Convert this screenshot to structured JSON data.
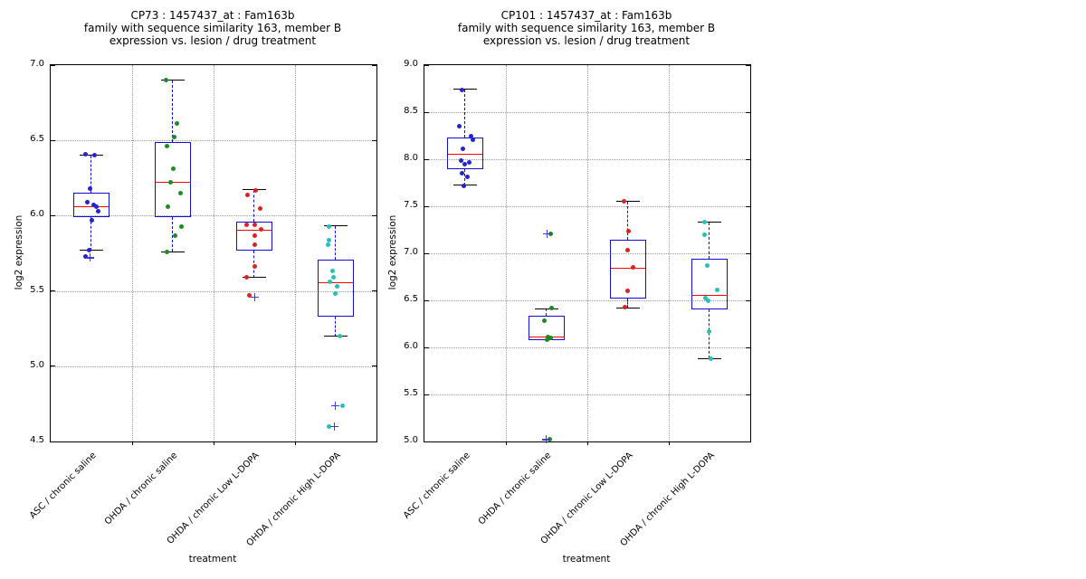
{
  "figure": {
    "background": "#ffffff",
    "text_color": "#000000",
    "colors": {
      "axis": "#000000",
      "grid": "#999999",
      "box": "#0d0dd6",
      "whisker": "#0d0dd6",
      "median": "#ff0000",
      "cap": "#000000",
      "flier": "#3c3cdc"
    }
  },
  "chart_data": [
    {
      "type": "boxplot",
      "title_lines": [
        "CP73 : 1457437_at : Fam163b",
        "family with sequence similarity 163, member B",
        "expression vs. lesion / drug treatment"
      ],
      "xlabel": "treatment",
      "ylabel": "log2 expression",
      "ylim": [
        4.5,
        7.0
      ],
      "yticks": [
        "4.5",
        "5.0",
        "5.5",
        "6.0",
        "6.5",
        "7.0"
      ],
      "grid": "dotted",
      "legend": "none",
      "categories": [
        "ASC / chronic saline",
        "OHDA / chronic saline",
        "OHDA / chronic Low L-DOPA",
        "OHDA / chronic High L-DOPA"
      ],
      "groups": [
        {
          "category": "ASC / chronic saline",
          "point_color": "#2525cd",
          "box": {
            "whisker_low": 5.77,
            "q1": 5.99,
            "median": 6.06,
            "q3": 6.15,
            "whisker_high": 6.4
          },
          "points": [
            [
              6.41,
              -7
            ],
            [
              6.4,
              3
            ],
            [
              6.18,
              -2
            ],
            [
              6.09,
              -5
            ],
            [
              6.07,
              2
            ],
            [
              6.06,
              5
            ],
            [
              6.03,
              7
            ],
            [
              5.97,
              0
            ],
            [
              5.77,
              -3
            ],
            [
              5.73,
              -7
            ]
          ],
          "fliers": [
            [
              5.72,
              -2
            ]
          ]
        },
        {
          "category": "OHDA / chronic saline",
          "point_color": "#1e8b1e",
          "box": {
            "whisker_low": 5.76,
            "q1": 5.99,
            "median": 6.22,
            "q3": 6.49,
            "whisker_high": 6.9
          },
          "points": [
            [
              6.9,
              -8
            ],
            [
              6.61,
              4
            ],
            [
              6.52,
              1
            ],
            [
              6.46,
              -7
            ],
            [
              6.31,
              0
            ],
            [
              6.22,
              -3
            ],
            [
              6.15,
              8
            ],
            [
              6.06,
              -6
            ],
            [
              5.93,
              9
            ],
            [
              5.87,
              2
            ],
            [
              5.76,
              -7
            ]
          ],
          "fliers": []
        },
        {
          "category": "OHDA / chronic Low L-DOPA",
          "point_color": "#e41f1f",
          "box": {
            "whisker_low": 5.59,
            "q1": 5.77,
            "median": 5.9,
            "q3": 5.96,
            "whisker_high": 6.17
          },
          "points": [
            [
              6.17,
              1
            ],
            [
              6.14,
              -8
            ],
            [
              6.05,
              6
            ],
            [
              5.94,
              -9
            ],
            [
              5.94,
              0
            ],
            [
              5.91,
              7
            ],
            [
              5.87,
              0
            ],
            [
              5.81,
              0
            ],
            [
              5.66,
              0
            ],
            [
              5.59,
              -9
            ],
            [
              5.47,
              -6
            ]
          ],
          "fliers": [
            [
              5.46,
              0
            ]
          ]
        },
        {
          "category": "OHDA / chronic High L-DOPA",
          "point_color": "#26c0ba",
          "box": {
            "whisker_low": 5.2,
            "q1": 5.33,
            "median": 5.55,
            "q3": 5.71,
            "whisker_high": 5.93
          },
          "points": [
            [
              5.93,
              -8
            ],
            [
              5.84,
              -8
            ],
            [
              5.81,
              -9
            ],
            [
              5.63,
              -4
            ],
            [
              5.59,
              -3
            ],
            [
              5.56,
              -7
            ],
            [
              5.53,
              1
            ],
            [
              5.48,
              -1
            ],
            [
              5.2,
              4
            ],
            [
              4.74,
              7
            ],
            [
              4.6,
              -8
            ]
          ],
          "fliers": [
            [
              4.74,
              -1
            ],
            [
              4.6,
              -2
            ]
          ]
        }
      ]
    },
    {
      "type": "boxplot",
      "title_lines": [
        "CP101 : 1457437_at : Fam163b",
        "family with sequence similarity 163, member B",
        "expression vs. lesion / drug treatment"
      ],
      "xlabel": "treatment",
      "ylabel": "log2 expression",
      "ylim": [
        5.0,
        9.0
      ],
      "yticks": [
        "5.0",
        "5.5",
        "6.0",
        "6.5",
        "7.0",
        "7.5",
        "8.0",
        "8.5",
        "9.0"
      ],
      "grid": "dotted",
      "legend": "none",
      "categories": [
        "ASC / chronic saline",
        "OHDA / chronic saline",
        "OHDA / chronic Low L-DOPA",
        "OHDA / chronic High L-DOPA"
      ],
      "groups": [
        {
          "category": "ASC / chronic saline",
          "point_color": "#2525cd",
          "box": {
            "whisker_low": 7.72,
            "q1": 7.89,
            "median": 8.05,
            "q3": 8.23,
            "whisker_high": 8.74
          },
          "points": [
            [
              8.74,
              -4
            ],
            [
              8.35,
              -7
            ],
            [
              8.25,
              6
            ],
            [
              8.21,
              8
            ],
            [
              8.11,
              -3
            ],
            [
              7.99,
              -5
            ],
            [
              7.97,
              4
            ],
            [
              7.95,
              -1
            ],
            [
              7.85,
              -4
            ],
            [
              7.81,
              2
            ],
            [
              7.72,
              -2
            ]
          ],
          "fliers": []
        },
        {
          "category": "OHDA / chronic saline",
          "point_color": "#1e8b1e",
          "box": {
            "whisker_low": 6.08,
            "q1": 6.08,
            "median": 6.11,
            "q3": 6.34,
            "whisker_high": 6.41
          },
          "points": [
            [
              7.21,
              4
            ],
            [
              6.42,
              5
            ],
            [
              6.28,
              -3
            ],
            [
              6.11,
              1
            ],
            [
              6.1,
              4
            ],
            [
              6.08,
              0
            ],
            [
              5.02,
              3
            ]
          ],
          "fliers": [
            [
              7.21,
              0
            ],
            [
              5.02,
              -1
            ]
          ]
        },
        {
          "category": "OHDA / chronic Low L-DOPA",
          "point_color": "#e41f1f",
          "box": {
            "whisker_low": 6.42,
            "q1": 6.52,
            "median": 6.84,
            "q3": 7.14,
            "whisker_high": 7.55
          },
          "points": [
            [
              7.55,
              -5
            ],
            [
              7.24,
              0
            ],
            [
              7.03,
              -1
            ],
            [
              6.85,
              5
            ],
            [
              6.6,
              -1
            ],
            [
              6.43,
              -4
            ]
          ],
          "fliers": []
        },
        {
          "category": "OHDA / chronic High L-DOPA",
          "point_color": "#26c0ba",
          "box": {
            "whisker_low": 5.88,
            "q1": 6.4,
            "median": 6.55,
            "q3": 6.94,
            "whisker_high": 7.33
          },
          "points": [
            [
              7.33,
              -6
            ],
            [
              7.2,
              -6
            ],
            [
              6.87,
              -3
            ],
            [
              6.61,
              8
            ],
            [
              6.52,
              -5
            ],
            [
              6.5,
              -2
            ],
            [
              6.17,
              -1
            ],
            [
              5.88,
              1
            ]
          ],
          "fliers": []
        }
      ]
    }
  ]
}
